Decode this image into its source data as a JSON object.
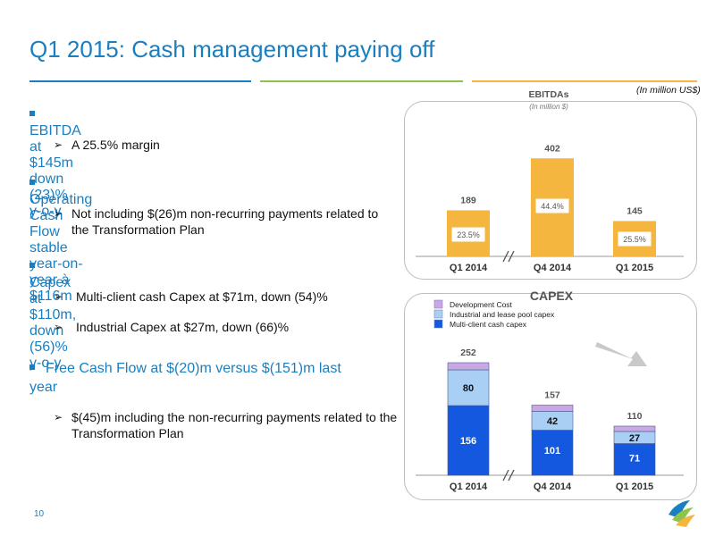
{
  "header": {
    "title": "Q1 2015: Cash management paying off"
  },
  "unit_note": "(In million US$)",
  "bullets": [
    {
      "text": "EBITDA at $145m down (23)% y-o-y",
      "subs": [
        "A 25.5% margin"
      ]
    },
    {
      "text": "Operating Cash Flow stable year-on-year à $116m",
      "subs": [
        "Not including $(26)m non-recurring payments related to the Transformation Plan"
      ]
    },
    {
      "text": "Capex at $110m, down (56)% y-o-y",
      "subs": [
        "Multi-client cash Capex at $71m, down (54)%",
        "Industrial Capex at $27m, down (66)%"
      ]
    },
    {
      "text": "Free Cash Flow at $(20)m versus $(151)m last year",
      "subs": [
        "$(45)m including the non-recurring payments related to the Transformation Plan"
      ]
    }
  ],
  "page_number": "10",
  "colors": {
    "accent_blue": "#1a7fc0",
    "accent_green": "#8ec549",
    "accent_orange": "#f4b63f",
    "ebitda_bar": "#f4b63f",
    "dev_cost": "#c9a8e6",
    "industrial": "#a9cff5",
    "multiclient": "#1458e0"
  },
  "chart_data": [
    {
      "type": "bar",
      "title": "EBITDAs",
      "subtitle": "(In million $)",
      "categories": [
        "Q1 2014",
        "Q4 2014",
        "Q1 2015"
      ],
      "values": [
        189,
        402,
        145
      ],
      "margins": [
        "23.5%",
        "44.4%",
        "25.5%"
      ],
      "axis_break_between": [
        "Q1 2014",
        "Q4 2014"
      ],
      "grid": false
    },
    {
      "type": "bar",
      "stacked": true,
      "title": "CAPEX",
      "categories": [
        "Q1 2014",
        "Q4 2014",
        "Q1 2015"
      ],
      "series": [
        {
          "name": "Multi-client cash capex",
          "values": [
            156,
            101,
            71
          ],
          "color": "#1458e0"
        },
        {
          "name": "Industrial and lease pool capex",
          "values": [
            80,
            42,
            27
          ],
          "color": "#a9cff5"
        },
        {
          "name": "Development Cost",
          "values": [
            16,
            14,
            12
          ],
          "color": "#c9a8e6"
        }
      ],
      "totals": [
        252,
        157,
        110
      ],
      "legend_position": "top-left",
      "axis_break_between": [
        "Q1 2014",
        "Q4 2014"
      ],
      "grid": false
    }
  ]
}
